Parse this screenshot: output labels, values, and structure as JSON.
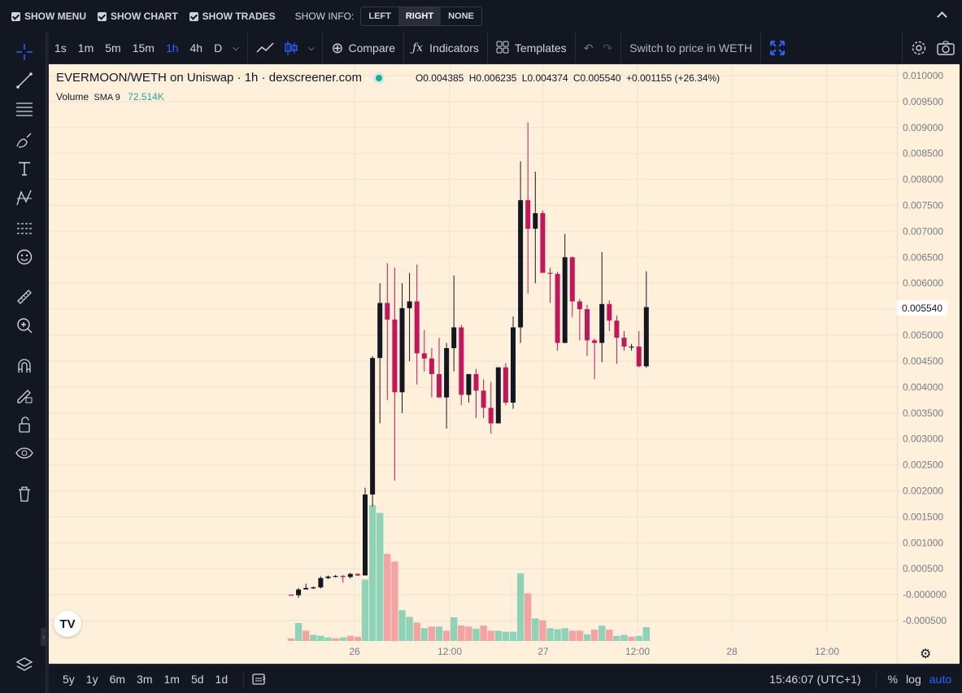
{
  "topbar": {
    "show_menu": "SHOW MENU",
    "show_chart": "SHOW CHART",
    "show_trades": "SHOW TRADES",
    "show_info": "SHOW INFO:",
    "info_left": "LEFT",
    "info_right": "RIGHT",
    "info_none": "NONE"
  },
  "toolbar": {
    "intervals": [
      "1s",
      "1m",
      "5m",
      "15m",
      "1h",
      "4h",
      "D"
    ],
    "active_interval": "1h",
    "compare": "Compare",
    "indicators": "Indicators",
    "templates": "Templates",
    "switch_price": "Switch to price in WETH"
  },
  "legend": {
    "symbol": "EVERMOON/WETH on Uniswap · 1h · dexscreener.com",
    "o_label": "O",
    "o": "0.004385",
    "h_label": "H",
    "h": "0.006235",
    "l_label": "L",
    "l": "0.004374",
    "c_label": "C",
    "c": "0.005540",
    "change": "+0.001155 (+26.34%)",
    "volume_label": "Volume",
    "sma_label": "SMA 9",
    "volume_value": "72.514K"
  },
  "bottom": {
    "ranges": [
      "5y",
      "1y",
      "6m",
      "3m",
      "1m",
      "5d",
      "1d"
    ],
    "time": "15:46:07 (UTC+1)",
    "percent": "%",
    "log": "log",
    "auto": "auto"
  },
  "colors": {
    "up": "#131722",
    "down": "#c2185b",
    "vol_up": "#8fd2b8",
    "vol_down": "#f4a3a3",
    "bg": "#fff0dc"
  },
  "chart_data": {
    "type": "candlestick",
    "symbol": "EVERMOON/WETH",
    "current_price_label": "0.005540",
    "y_ticks": [
      "0.010000",
      "0.009500",
      "0.009000",
      "0.008500",
      "0.008000",
      "0.007500",
      "0.007000",
      "0.006500",
      "0.006000",
      "0.005500",
      "0.005000",
      "0.004500",
      "0.004000",
      "0.003500",
      "0.003000",
      "0.002500",
      "0.002000",
      "0.001500",
      "0.001000",
      "0.000500",
      "-0.000000",
      "-0.000500"
    ],
    "x_ticks": [
      "26",
      "12:00",
      "27",
      "12:00",
      "28",
      "12:00"
    ],
    "ylim": [
      -0.0005,
      0.01
    ],
    "candles": [
      [
        0.0,
        0.0,
        -1e-05,
        -1e-05
      ],
      [
        -1e-05,
        0.00013,
        -6e-05,
        0.0001
      ],
      [
        0.0001,
        0.00021,
        0.00011,
        0.00013
      ],
      [
        0.00013,
        0.00016,
        0.00011,
        0.00014
      ],
      [
        0.00014,
        0.00035,
        0.00012,
        0.00032
      ],
      [
        0.00032,
        0.00037,
        0.0003,
        0.00035
      ],
      [
        0.00035,
        0.00038,
        0.00033,
        0.00036
      ],
      [
        0.00036,
        0.00038,
        0.00023,
        0.00034
      ],
      [
        0.00034,
        0.00042,
        0.00031,
        0.0004
      ],
      [
        0.0004,
        0.00041,
        0.00036,
        0.00037
      ],
      [
        0.00037,
        0.00206,
        0.00037,
        0.00193
      ],
      [
        0.00193,
        0.0046,
        0.0017,
        0.00456
      ],
      [
        0.00456,
        0.006,
        0.0033,
        0.00562
      ],
      [
        0.00562,
        0.00639,
        0.00375,
        0.0053
      ],
      [
        0.0053,
        0.0063,
        0.0022,
        0.0039
      ],
      [
        0.0039,
        0.006,
        0.0035,
        0.00552
      ],
      [
        0.00552,
        0.0062,
        0.0045,
        0.00565
      ],
      [
        0.00565,
        0.00636,
        0.00405,
        0.00465
      ],
      [
        0.00465,
        0.0051,
        0.0043,
        0.00455
      ],
      [
        0.00455,
        0.00475,
        0.0038,
        0.00425
      ],
      [
        0.00425,
        0.00495,
        0.0038,
        0.0038
      ],
      [
        0.0038,
        0.00485,
        0.0032,
        0.00475
      ],
      [
        0.00475,
        0.00615,
        0.0043,
        0.00515
      ],
      [
        0.00515,
        0.0052,
        0.00365,
        0.00385
      ],
      [
        0.00385,
        0.00425,
        0.0037,
        0.00425
      ],
      [
        0.00425,
        0.00435,
        0.0034,
        0.00393
      ],
      [
        0.00393,
        0.00415,
        0.0034,
        0.0036
      ],
      [
        0.0036,
        0.0041,
        0.0031,
        0.0033
      ],
      [
        0.0033,
        0.00438,
        0.0033,
        0.00438
      ],
      [
        0.00438,
        0.00446,
        0.00365,
        0.0037
      ],
      [
        0.0037,
        0.00536,
        0.00358,
        0.00515
      ],
      [
        0.00515,
        0.00835,
        0.00485,
        0.0076
      ],
      [
        0.0076,
        0.0091,
        0.0058,
        0.00705
      ],
      [
        0.00705,
        0.00815,
        0.006,
        0.00735
      ],
      [
        0.00735,
        0.0074,
        0.0062,
        0.0062
      ],
      [
        0.0062,
        0.0063,
        0.00562,
        0.00618
      ],
      [
        0.00618,
        0.00622,
        0.0047,
        0.00485
      ],
      [
        0.00485,
        0.00695,
        0.00485,
        0.0065
      ],
      [
        0.0065,
        0.00652,
        0.00535,
        0.00565
      ],
      [
        0.00565,
        0.0057,
        0.0049,
        0.0055
      ],
      [
        0.0055,
        0.00558,
        0.0046,
        0.0049
      ],
      [
        0.0049,
        0.00494,
        0.00415,
        0.00485
      ],
      [
        0.00485,
        0.0066,
        0.00448,
        0.0056
      ],
      [
        0.0056,
        0.00567,
        0.00508,
        0.00528
      ],
      [
        0.00528,
        0.00538,
        0.00445,
        0.00495
      ],
      [
        0.00495,
        0.00508,
        0.0047,
        0.00478
      ],
      [
        0.00478,
        0.00483,
        0.0047,
        0.00478
      ],
      [
        0.00478,
        0.00508,
        0.00438,
        0.0044
      ],
      [
        0.0044,
        0.00623,
        0.00437,
        0.00554
      ]
    ],
    "volume": [
      [
        5,
        0
      ],
      [
        35,
        1
      ],
      [
        20,
        0
      ],
      [
        12,
        1
      ],
      [
        10,
        1
      ],
      [
        7,
        1
      ],
      [
        5,
        0
      ],
      [
        7,
        1
      ],
      [
        10,
        0
      ],
      [
        8,
        0
      ],
      [
        120,
        1
      ],
      [
        265,
        1
      ],
      [
        250,
        1
      ],
      [
        170,
        0
      ],
      [
        155,
        0
      ],
      [
        60,
        1
      ],
      [
        47,
        1
      ],
      [
        36,
        0
      ],
      [
        25,
        1
      ],
      [
        28,
        0
      ],
      [
        28,
        1
      ],
      [
        20,
        0
      ],
      [
        46,
        1
      ],
      [
        30,
        0
      ],
      [
        28,
        0
      ],
      [
        24,
        1
      ],
      [
        30,
        0
      ],
      [
        20,
        0
      ],
      [
        20,
        1
      ],
      [
        18,
        1
      ],
      [
        18,
        1
      ],
      [
        132,
        1
      ],
      [
        93,
        0
      ],
      [
        44,
        1
      ],
      [
        40,
        0
      ],
      [
        25,
        1
      ],
      [
        23,
        1
      ],
      [
        25,
        1
      ],
      [
        20,
        0
      ],
      [
        20,
        0
      ],
      [
        13,
        1
      ],
      [
        22,
        0
      ],
      [
        30,
        1
      ],
      [
        22,
        0
      ],
      [
        10,
        1
      ],
      [
        12,
        1
      ],
      [
        8,
        0
      ],
      [
        10,
        1
      ],
      [
        27,
        1
      ]
    ]
  }
}
